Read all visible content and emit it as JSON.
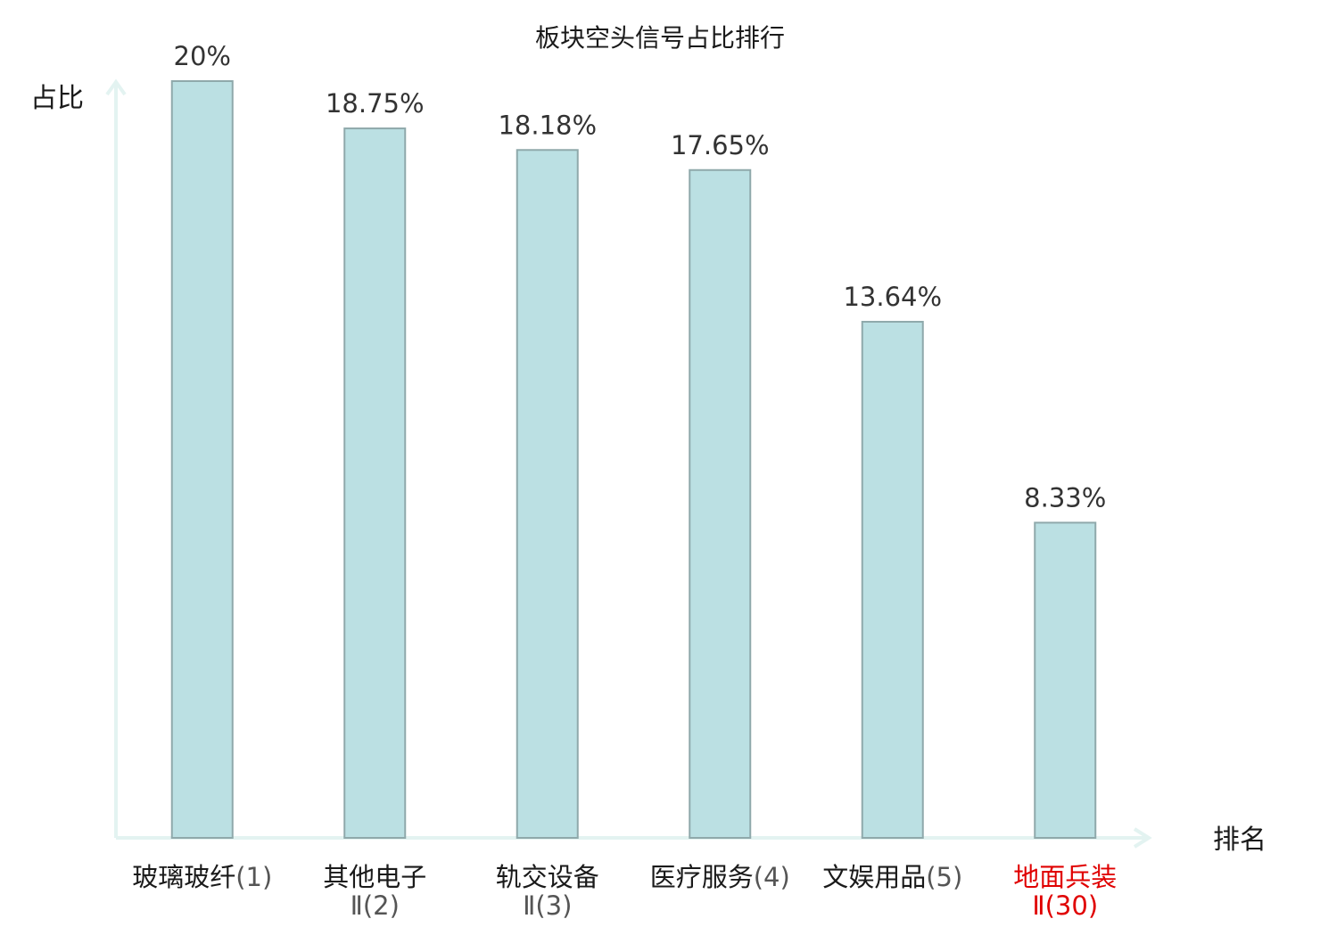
{
  "chart_data": {
    "type": "bar",
    "title": "板块空头信号占比排行",
    "ylabel": "占比",
    "xlabel": "排名",
    "ylim": [
      0,
      20
    ],
    "grid": false,
    "legend": "none",
    "colors": {
      "bar_fill": "#bbe0e3",
      "bar_stroke": "#8fa9ab",
      "axis": "#e3f3f1",
      "highlight_text": "#e00000"
    },
    "categories": [
      {
        "name": "玻璃玻纤",
        "rank": "(1)",
        "rank_line": "",
        "highlight": false
      },
      {
        "name": "其他电子",
        "rank": "",
        "rank_line": "Ⅱ(2)",
        "highlight": false
      },
      {
        "name": "轨交设备",
        "rank": "",
        "rank_line": "Ⅱ(3)",
        "highlight": false
      },
      {
        "name": "医疗服务",
        "rank": "(4)",
        "rank_line": "",
        "highlight": false
      },
      {
        "name": "文娱用品",
        "rank": "(5)",
        "rank_line": "",
        "highlight": false
      },
      {
        "name": "地面兵装",
        "rank": "",
        "rank_line": "Ⅱ(30)",
        "highlight": true
      }
    ],
    "values": [
      20,
      18.75,
      18.18,
      17.65,
      13.64,
      8.33
    ],
    "value_labels": [
      "20%",
      "18.75%",
      "18.18%",
      "17.65%",
      "13.64%",
      "8.33%"
    ]
  }
}
